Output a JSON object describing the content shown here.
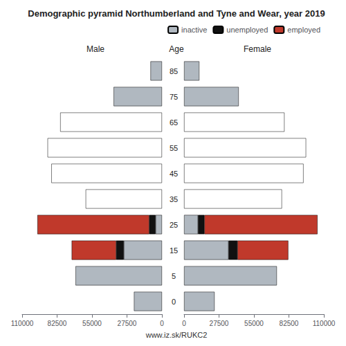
{
  "title": "Demographic pyramid Northumberland and Tyne and Wear, year 2019",
  "subtitle": "www.iz.sk/RUKC2",
  "ylabel": "Age",
  "chart_data": [
    {
      "type": "bar",
      "title": "Male",
      "orientation": "horizontal",
      "stacked": true,
      "grid": false,
      "categories": [
        0,
        5,
        15,
        25,
        35,
        45,
        55,
        65,
        75,
        85
      ],
      "xlim": [
        0,
        110000
      ],
      "xticks": [
        0,
        27500,
        55000,
        82500,
        110000
      ],
      "series": [
        {
          "name": "inactive",
          "color": "#b0b8c0",
          "colors": [
            "#b0b8c0",
            "#b0b8c0",
            "#b0b8c0",
            "#b0b8c0",
            "white",
            "white",
            "white",
            "white",
            "#b0b8c0",
            "#b0b8c0"
          ],
          "values": [
            22000,
            68000,
            30000,
            5000,
            60000,
            87000,
            90000,
            80000,
            38000,
            9000
          ]
        },
        {
          "name": "unemployed",
          "color": "#111111",
          "values": [
            0,
            0,
            6000,
            5000,
            0,
            0,
            0,
            0,
            0,
            0
          ]
        },
        {
          "name": "employed",
          "color": "#c0392b",
          "values": [
            0,
            0,
            35000,
            88000,
            0,
            0,
            0,
            0,
            0,
            0
          ]
        }
      ]
    },
    {
      "type": "bar",
      "title": "Female",
      "orientation": "horizontal",
      "stacked": true,
      "grid": false,
      "legend": "upper right",
      "categories": [
        0,
        5,
        15,
        25,
        35,
        45,
        55,
        65,
        75,
        85
      ],
      "xlim": [
        0,
        110000
      ],
      "xticks": [
        0,
        27500,
        55000,
        82500,
        110000
      ],
      "series": [
        {
          "name": "inactive",
          "color": "#b0b8c0",
          "colors": [
            "#b0b8c0",
            "#b0b8c0",
            "#b0b8c0",
            "#b0b8c0",
            "white",
            "white",
            "white",
            "white",
            "#b0b8c0",
            "#b0b8c0"
          ],
          "values": [
            24000,
            73000,
            35000,
            11000,
            77000,
            94000,
            96000,
            79000,
            43000,
            12000
          ]
        },
        {
          "name": "unemployed",
          "color": "#111111",
          "values": [
            0,
            0,
            7000,
            5000,
            0,
            0,
            0,
            0,
            0,
            0
          ]
        },
        {
          "name": "employed",
          "color": "#c0392b",
          "values": [
            0,
            0,
            40000,
            89000,
            0,
            0,
            0,
            0,
            0,
            0
          ]
        }
      ]
    }
  ]
}
